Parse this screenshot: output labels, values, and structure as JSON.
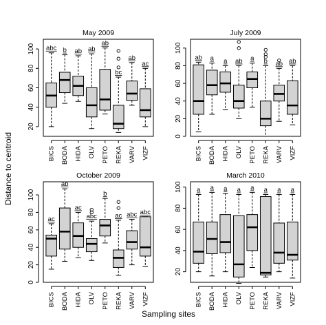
{
  "figure": {
    "ylabel": "Distance to centroid",
    "xlabel": "Sampling sites",
    "box_fill": "#d3d3d3"
  },
  "chart_data": [
    {
      "type": "boxplot",
      "title": "May 2009",
      "categories": [
        "BICS",
        "BODA",
        "HIDA",
        "OLV",
        "PETO",
        "REKA",
        "VARV",
        "VIZF"
      ],
      "ylim": [
        10,
        110
      ],
      "yticks": [
        20,
        40,
        60,
        80,
        100
      ],
      "boxes": [
        {
          "min": 20,
          "q1": 40,
          "median": 52,
          "q3": 65,
          "max": 96,
          "outliers": []
        },
        {
          "min": 44,
          "q1": 55,
          "median": 68,
          "q3": 76,
          "max": 94,
          "outliers": []
        },
        {
          "min": 46,
          "q1": 52,
          "median": 62,
          "q3": 72,
          "max": 93,
          "outliers": []
        },
        {
          "min": 18,
          "q1": 30,
          "median": 42,
          "q3": 60,
          "max": 95,
          "outliers": []
        },
        {
          "min": 33,
          "q1": 37,
          "median": 48,
          "q3": 79,
          "max": 101,
          "outliers": []
        },
        {
          "min": 14,
          "q1": 18,
          "median": 23,
          "q3": 42,
          "max": 71,
          "outliers": [
            81,
            90,
            98
          ]
        },
        {
          "min": 42,
          "q1": 47,
          "median": 54,
          "q3": 67,
          "max": 86,
          "outliers": []
        },
        {
          "min": 20,
          "q1": 30,
          "median": 37,
          "q3": 59,
          "max": 80,
          "outliers": []
        }
      ],
      "letters": [
        "abc",
        "b",
        "ab",
        "ab",
        "ab",
        "bc",
        "ab",
        "ac"
      ]
    },
    {
      "type": "boxplot",
      "title": "July 2009",
      "categories": [
        "BICS",
        "BODA",
        "HIDA",
        "OLV",
        "PETO",
        "REKA",
        "VARV",
        "VIZF"
      ],
      "ylim": [
        0,
        110
      ],
      "yticks": [
        0,
        20,
        40,
        60,
        80,
        100
      ],
      "boxes": [
        {
          "min": 5,
          "q1": 25,
          "median": 40,
          "q3": 81,
          "max": 84,
          "outliers": []
        },
        {
          "min": 25,
          "q1": 47,
          "median": 58,
          "q3": 75,
          "max": 83,
          "outliers": []
        },
        {
          "min": 30,
          "q1": 50,
          "median": 60,
          "q3": 73,
          "max": 80,
          "outliers": []
        },
        {
          "min": 20,
          "q1": 32,
          "median": 40,
          "q3": 58,
          "max": 80,
          "outliers": [
            100,
            107
          ]
        },
        {
          "min": 33,
          "q1": 55,
          "median": 65,
          "q3": 73,
          "max": 83,
          "outliers": []
        },
        {
          "min": 0,
          "q1": 12,
          "median": 20,
          "q3": 40,
          "max": 80,
          "outliers": [
            90,
            93,
            98
          ]
        },
        {
          "min": 17,
          "q1": 40,
          "median": 48,
          "q3": 58,
          "max": 77,
          "outliers": [
            86
          ]
        },
        {
          "min": 13,
          "q1": 25,
          "median": 35,
          "q3": 63,
          "max": 80,
          "outliers": []
        }
      ],
      "letters": [
        "ab",
        "a",
        "a",
        "ab",
        "a",
        "b",
        "ab",
        "ab"
      ]
    },
    {
      "type": "boxplot",
      "title": "October 2009",
      "categories": [
        "BICS",
        "BODA",
        "HIDA",
        "OLV",
        "PETO",
        "REKA",
        "VARV",
        "VIZF"
      ],
      "ylim": [
        0,
        115
      ],
      "yticks": [
        0,
        20,
        40,
        60,
        80,
        100
      ],
      "boxes": [
        {
          "min": 15,
          "q1": 30,
          "median": 50,
          "q3": 54,
          "max": 67,
          "outliers": []
        },
        {
          "min": 24,
          "q1": 38,
          "median": 58,
          "q3": 85,
          "max": 107,
          "outliers": []
        },
        {
          "min": 28,
          "q1": 40,
          "median": 53,
          "q3": 68,
          "max": 80,
          "outliers": []
        },
        {
          "min": 25,
          "q1": 35,
          "median": 44,
          "q3": 50,
          "max": 70,
          "outliers": [
            80,
            83
          ]
        },
        {
          "min": 45,
          "q1": 53,
          "median": 65,
          "q3": 72,
          "max": 96,
          "outliers": []
        },
        {
          "min": 8,
          "q1": 17,
          "median": 28,
          "q3": 37,
          "max": 71,
          "outliers": [
            85,
            92
          ]
        },
        {
          "min": 20,
          "q1": 38,
          "median": 46,
          "q3": 59,
          "max": 72,
          "outliers": []
        },
        {
          "min": 18,
          "q1": 30,
          "median": 40,
          "q3": 75,
          "max": 75,
          "outliers": []
        }
      ],
      "letters": [
        "ac",
        "ab",
        "ac",
        "abc",
        "b",
        "ac",
        "abc",
        "abc"
      ]
    },
    {
      "type": "boxplot",
      "title": "March 2010",
      "categories": [
        "BICS",
        "BODA",
        "HIDA",
        "OLV",
        "PETO",
        "REKA",
        "VARV",
        "VIZF"
      ],
      "ylim": [
        10,
        105
      ],
      "yticks": [
        20,
        40,
        60,
        80,
        100
      ],
      "boxes": [
        {
          "min": 20,
          "q1": 28,
          "median": 39,
          "q3": 67,
          "max": 93,
          "outliers": []
        },
        {
          "min": 16,
          "q1": 37,
          "median": 51,
          "q3": 67,
          "max": 95,
          "outliers": []
        },
        {
          "min": 20,
          "q1": 38,
          "median": 48,
          "q3": 74,
          "max": 94,
          "outliers": []
        },
        {
          "min": 9,
          "q1": 15,
          "median": 27,
          "q3": 73,
          "max": 93,
          "outliers": []
        },
        {
          "min": 24,
          "q1": 40,
          "median": 62,
          "q3": 74,
          "max": 95,
          "outliers": []
        },
        {
          "min": 15,
          "q1": 17,
          "median": 19,
          "q3": 91,
          "max": 93,
          "outliers": []
        },
        {
          "min": 20,
          "q1": 28,
          "median": 38,
          "q3": 66,
          "max": 93,
          "outliers": []
        },
        {
          "min": 14,
          "q1": 31,
          "median": 36,
          "q3": 67,
          "max": 93,
          "outliers": []
        }
      ],
      "letters": [
        "a",
        "a",
        "a",
        "a",
        "a",
        "a",
        "a",
        "a"
      ]
    }
  ]
}
